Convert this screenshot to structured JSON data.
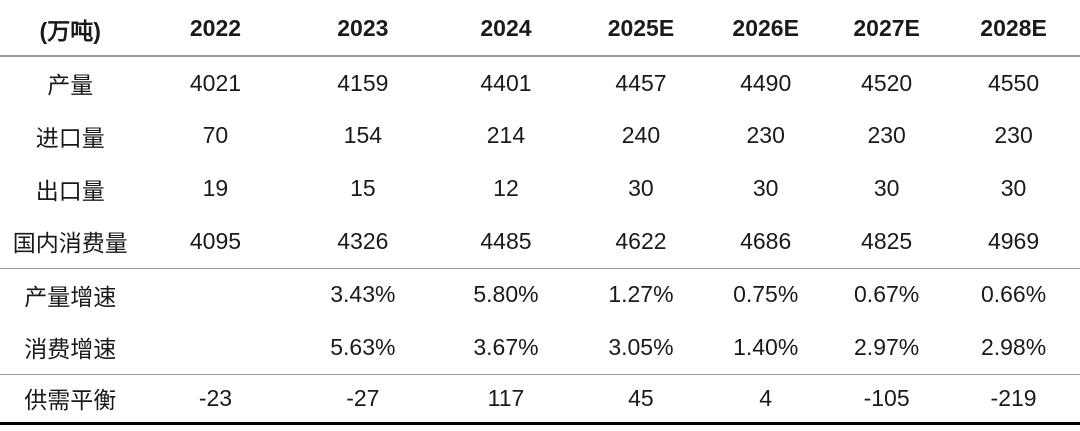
{
  "table": {
    "unit_header": "(万吨)",
    "columns": [
      "2022",
      "2023",
      "2024",
      "2025E",
      "2026E",
      "2027E",
      "2028E"
    ],
    "rows": [
      {
        "label": "产量",
        "values": [
          "4021",
          "4159",
          "4401",
          "4457",
          "4490",
          "4520",
          "4550"
        ]
      },
      {
        "label": "进口量",
        "values": [
          "70",
          "154",
          "214",
          "240",
          "230",
          "230",
          "230"
        ]
      },
      {
        "label": "出口量",
        "values": [
          "19",
          "15",
          "12",
          "30",
          "30",
          "30",
          "30"
        ]
      },
      {
        "label": "国内消费量",
        "values": [
          "4095",
          "4326",
          "4485",
          "4622",
          "4686",
          "4825",
          "4969"
        ]
      },
      {
        "label": "产量增速",
        "values": [
          "",
          "3.43%",
          "5.80%",
          "1.27%",
          "0.75%",
          "0.67%",
          "0.66%"
        ]
      },
      {
        "label": "消费增速",
        "values": [
          "",
          "5.63%",
          "3.67%",
          "3.05%",
          "1.40%",
          "2.97%",
          "2.98%"
        ]
      },
      {
        "label": "供需平衡",
        "values": [
          "-23",
          "-27",
          "117",
          "45",
          "4",
          "-105",
          "-219"
        ]
      }
    ],
    "section_breaks_after_row_index": [
      3,
      5
    ]
  },
  "colors": {
    "text": "#1a1a1a",
    "rule_gray": "#9a9a9a",
    "rule_bottom": "#000000",
    "background": "#ffffff"
  },
  "chart_data": {
    "type": "table",
    "title": "",
    "unit": "万吨",
    "columns": [
      "2022",
      "2023",
      "2024",
      "2025E",
      "2026E",
      "2027E",
      "2028E"
    ],
    "rows": [
      {
        "label": "产量",
        "values": [
          4021,
          4159,
          4401,
          4457,
          4490,
          4520,
          4550
        ]
      },
      {
        "label": "进口量",
        "values": [
          70,
          154,
          214,
          240,
          230,
          230,
          230
        ]
      },
      {
        "label": "出口量",
        "values": [
          19,
          15,
          12,
          30,
          30,
          30,
          30
        ]
      },
      {
        "label": "国内消费量",
        "values": [
          4095,
          4326,
          4485,
          4622,
          4686,
          4825,
          4969
        ]
      },
      {
        "label": "产量增速",
        "values": [
          null,
          "3.43%",
          "5.80%",
          "1.27%",
          "0.75%",
          "0.67%",
          "0.66%"
        ]
      },
      {
        "label": "消费增速",
        "values": [
          null,
          "5.63%",
          "3.67%",
          "3.05%",
          "1.40%",
          "2.97%",
          "2.98%"
        ]
      },
      {
        "label": "供需平衡",
        "values": [
          -23,
          -27,
          117,
          45,
          4,
          -105,
          -219
        ]
      }
    ],
    "layout_hints": {
      "grid": "horizontal section rules only",
      "header_rule": "2px gray",
      "section_rules_after_rows": [
        "国内消费量",
        "消费增速"
      ],
      "bottom_rule": "thick black"
    }
  }
}
